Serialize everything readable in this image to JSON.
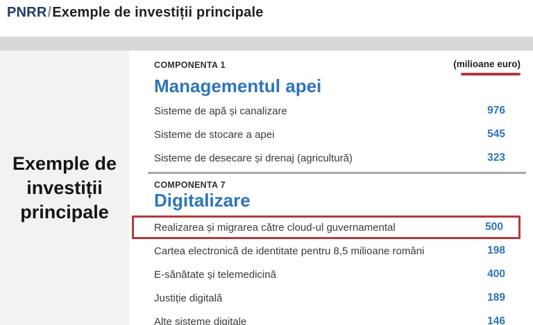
{
  "page": {
    "breadcrumb_prefix": "PNRR",
    "breadcrumb_separator": "/",
    "title": "Exemple de investiții principale"
  },
  "sidebar": {
    "heading_lines": [
      "Exemple de",
      "investiții",
      "principale"
    ]
  },
  "main": {
    "unit_label": "(milioane euro)",
    "sections": [
      {
        "component_label": "COMPONENTA 1",
        "heading": "Managementul apei",
        "items": [
          {
            "label": "Sisteme de apă și canalizare",
            "value": "976"
          },
          {
            "label": "Sisteme de stocare a apei",
            "value": "545"
          },
          {
            "label": "Sisteme de desecare și drenaj (agricultură)",
            "value": "323"
          }
        ]
      },
      {
        "component_label": "COMPONENTA 7",
        "heading": "Digitalizare",
        "items": [
          {
            "label": "Realizarea și migrarea către cloud-ul guvernamental",
            "value": "500",
            "highlighted": true
          },
          {
            "label": "Cartea electronică de identitate pentru 8,5 milioane români",
            "value": "198"
          },
          {
            "label": "E-sănătate și telemedicină",
            "value": "400"
          },
          {
            "label": "Justiție digitală",
            "value": "189"
          },
          {
            "label": "Alte sisteme digitale",
            "value": "146"
          }
        ]
      }
    ]
  },
  "colors": {
    "accent_blue": "#2E75B6",
    "navy": "#24396B",
    "highlight_red": "#B23A3A",
    "band_gray": "#D8D8D8",
    "panel_gray": "#F2F2F2",
    "divider_gray": "#A6A6A6"
  }
}
